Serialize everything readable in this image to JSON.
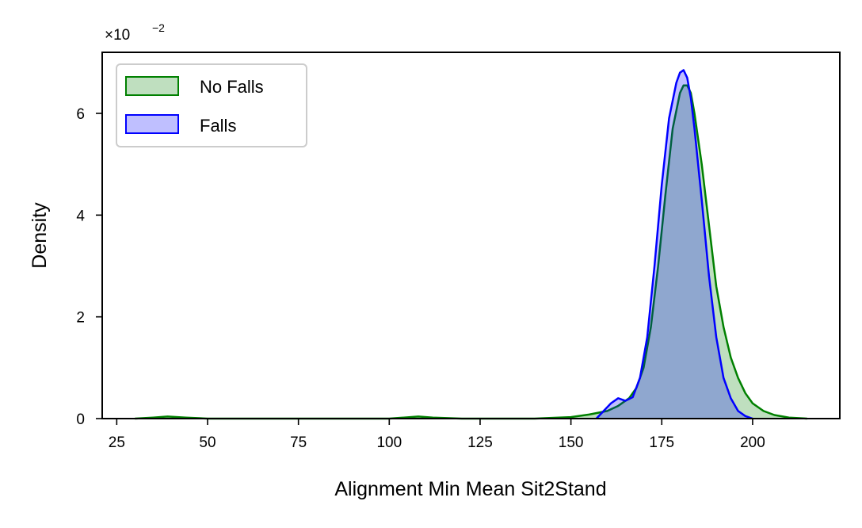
{
  "chart_data": {
    "type": "area",
    "xlabel": "Alignment Min Mean Sit2Stand",
    "ylabel": "Density",
    "y_scale_label": "×10",
    "y_scale_exponent": "−2",
    "xlim": [
      21,
      224
    ],
    "ylim": [
      0,
      7.2
    ],
    "x_ticks": [
      25,
      50,
      75,
      100,
      125,
      150,
      175,
      200
    ],
    "x_tick_labels": [
      "25",
      "50",
      "75",
      "100",
      "125",
      "150",
      "175",
      "200"
    ],
    "y_ticks": [
      0,
      2,
      4,
      6
    ],
    "y_tick_labels": [
      "0",
      "2",
      "4",
      "6"
    ],
    "grid": false,
    "legend_position": "top-left",
    "series": [
      {
        "name": "No Falls",
        "color": "#008000",
        "fill": "rgba(0,128,0,0.25)",
        "x": [
          30,
          35,
          39,
          44,
          50,
          75,
          100,
          104,
          108,
          112,
          120,
          140,
          150,
          155,
          160,
          163,
          166,
          168,
          170,
          172,
          174,
          176,
          178,
          180,
          181,
          182,
          183,
          184,
          186,
          188,
          190,
          192,
          194,
          196,
          198,
          200,
          203,
          206,
          210,
          215
        ],
        "values": [
          0.0,
          0.02,
          0.04,
          0.02,
          0.0,
          0.0,
          0.0,
          0.02,
          0.04,
          0.02,
          0.0,
          0.0,
          0.03,
          0.08,
          0.15,
          0.25,
          0.4,
          0.6,
          1.0,
          1.8,
          3.0,
          4.4,
          5.7,
          6.4,
          6.55,
          6.55,
          6.4,
          6.0,
          5.0,
          3.8,
          2.6,
          1.8,
          1.2,
          0.8,
          0.5,
          0.3,
          0.15,
          0.07,
          0.02,
          0.0
        ]
      },
      {
        "name": "Falls",
        "color": "#0000ff",
        "fill": "rgba(0,0,255,0.25)",
        "x": [
          157,
          159,
          161,
          163,
          165,
          167,
          169,
          171,
          173,
          175,
          177,
          179,
          180,
          181,
          182,
          183,
          184,
          186,
          188,
          190,
          192,
          194,
          196,
          198,
          200
        ],
        "values": [
          0.0,
          0.15,
          0.3,
          0.4,
          0.35,
          0.42,
          0.8,
          1.6,
          3.0,
          4.6,
          5.9,
          6.6,
          6.8,
          6.85,
          6.7,
          6.3,
          5.7,
          4.3,
          2.8,
          1.6,
          0.8,
          0.4,
          0.15,
          0.05,
          0.0
        ]
      }
    ]
  }
}
